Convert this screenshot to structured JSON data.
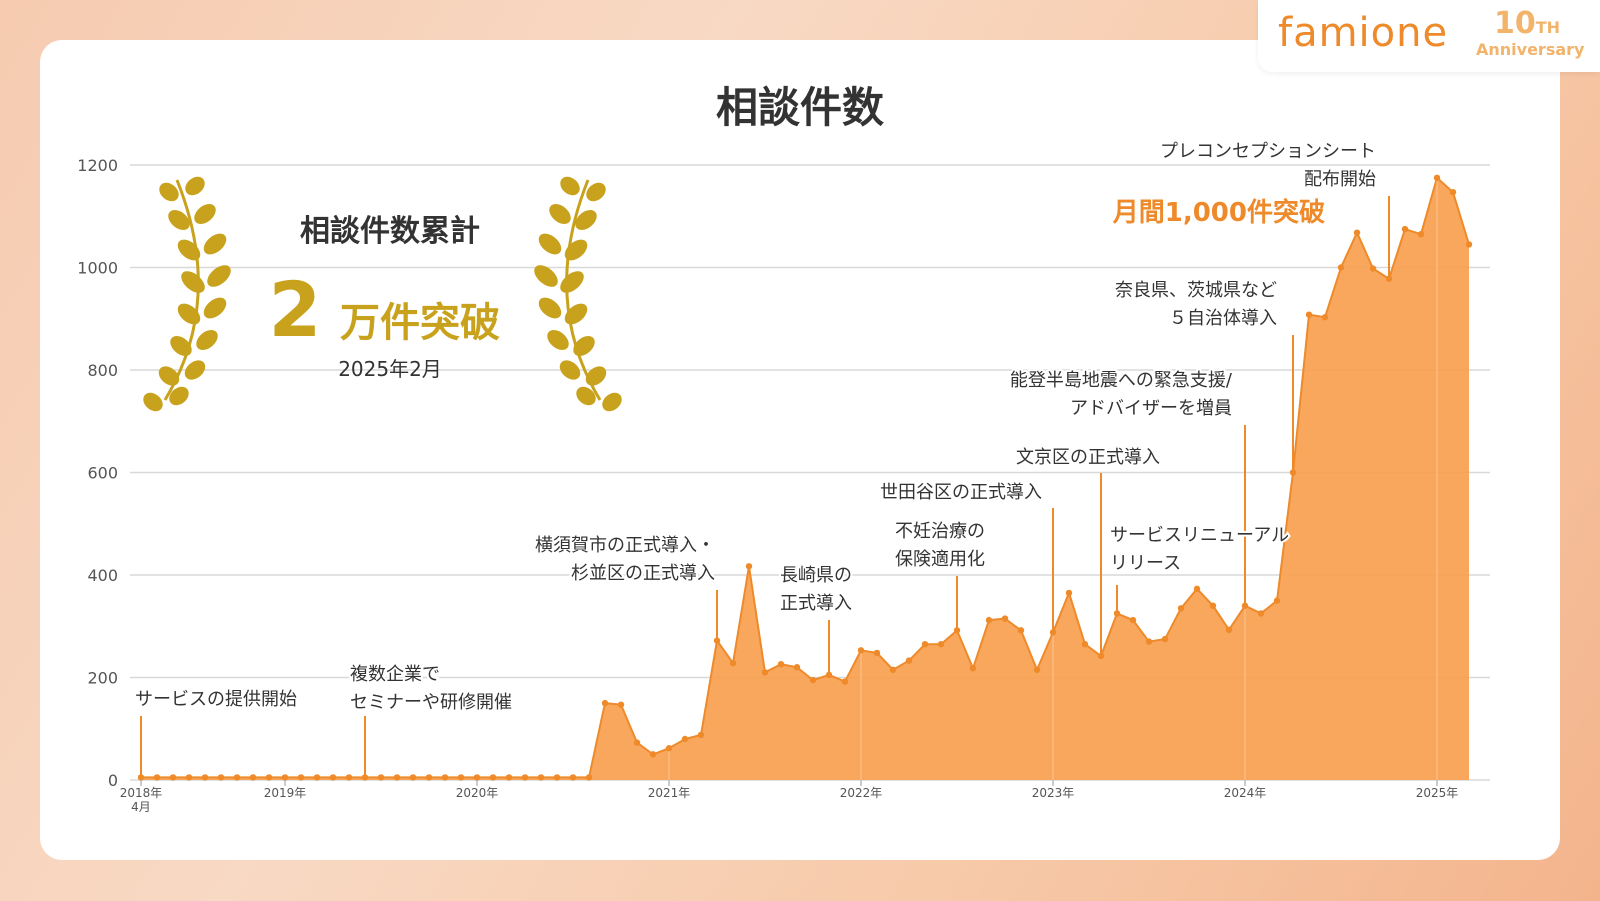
{
  "brand": {
    "logo": "famione",
    "anniversary_number": "10",
    "anniversary_suffix": "TH",
    "anniversary_word": "Anniversary"
  },
  "colors": {
    "fill": "#f8a04f",
    "line": "#ee8a2a",
    "gold": "#c8a21c",
    "text": "#333333",
    "grid": "#d9d9d9"
  },
  "summary": {
    "heading": "相談件数累計",
    "big_number": "2",
    "big_suffix": "万件突破",
    "date": "2025年2月"
  },
  "chart_data": {
    "type": "area",
    "title": "相談件数",
    "ylim": [
      0,
      1200
    ],
    "yticks": [
      0,
      200,
      400,
      600,
      800,
      1000,
      1200
    ],
    "grid": true,
    "x_start": "2018年4月",
    "x_tick_labels": [
      "2018年\n4月",
      "2019年",
      "2020年",
      "2021年",
      "2022年",
      "2023年",
      "2024年",
      "2025年"
    ],
    "x_tick_months": [
      "2018-04",
      "2019-01",
      "2020-01",
      "2021-01",
      "2022-01",
      "2023-01",
      "2024-01",
      "2025-01"
    ],
    "months": [
      "2018-04",
      "2018-05",
      "2018-06",
      "2018-07",
      "2018-08",
      "2018-09",
      "2018-10",
      "2018-11",
      "2018-12",
      "2019-01",
      "2019-02",
      "2019-03",
      "2019-04",
      "2019-05",
      "2019-06",
      "2019-07",
      "2019-08",
      "2019-09",
      "2019-10",
      "2019-11",
      "2019-12",
      "2020-01",
      "2020-02",
      "2020-03",
      "2020-04",
      "2020-05",
      "2020-06",
      "2020-07",
      "2020-08",
      "2020-09",
      "2020-10",
      "2020-11",
      "2020-12",
      "2021-01",
      "2021-02",
      "2021-03",
      "2021-04",
      "2021-05",
      "2021-06",
      "2021-07",
      "2021-08",
      "2021-09",
      "2021-10",
      "2021-11",
      "2021-12",
      "2022-01",
      "2022-02",
      "2022-03",
      "2022-04",
      "2022-05",
      "2022-06",
      "2022-07",
      "2022-08",
      "2022-09",
      "2022-10",
      "2022-11",
      "2022-12",
      "2023-01",
      "2023-02",
      "2023-03",
      "2023-04",
      "2023-05",
      "2023-06",
      "2023-07",
      "2023-08",
      "2023-09",
      "2023-10",
      "2023-11",
      "2023-12",
      "2024-01",
      "2024-02",
      "2024-03",
      "2024-04",
      "2024-05",
      "2024-06",
      "2024-07",
      "2024-08",
      "2024-09",
      "2024-10",
      "2024-11",
      "2024-12",
      "2025-01",
      "2025-02",
      "2025-03"
    ],
    "values": [
      5,
      5,
      5,
      5,
      5,
      5,
      5,
      5,
      5,
      5,
      5,
      5,
      5,
      5,
      5,
      5,
      5,
      5,
      5,
      5,
      5,
      5,
      5,
      5,
      5,
      5,
      5,
      5,
      5,
      150,
      147,
      73,
      50,
      62,
      80,
      88,
      272,
      228,
      417,
      210,
      226,
      220,
      195,
      205,
      192,
      253,
      248,
      215,
      233,
      265,
      265,
      292,
      218,
      312,
      315,
      292,
      215,
      288,
      365,
      265,
      242,
      325,
      312,
      270,
      275,
      335,
      373,
      340,
      293,
      340,
      325,
      350,
      600,
      908,
      903,
      1000,
      1068,
      998,
      978,
      1075,
      1065,
      1175,
      1147,
      1045
    ],
    "annotations": [
      {
        "month": "2018-04",
        "lines": [
          "サービスの提供開始"
        ],
        "highlight": false
      },
      {
        "month": "2019-06",
        "lines": [
          "複数企業で",
          "セミナーや研修開催"
        ],
        "highlight": false
      },
      {
        "month": "2021-04",
        "lines": [
          "横須賀市の正式導入・",
          "杉並区の正式導入"
        ],
        "highlight": false
      },
      {
        "month": "2021-11",
        "lines": [
          "長崎県の",
          "正式導入"
        ],
        "highlight": false
      },
      {
        "month": "2022-07",
        "lines": [
          "不妊治療の",
          "保険適用化"
        ],
        "highlight": false
      },
      {
        "month": "2023-01",
        "lines": [
          "世田谷区の正式導入"
        ],
        "highlight": false
      },
      {
        "month": "2023-04",
        "lines": [
          "文京区の正式導入"
        ],
        "highlight": false
      },
      {
        "month": "2023-05",
        "lines": [
          "サービスリニューアル",
          "リリース"
        ],
        "highlight": false
      },
      {
        "month": "2024-01",
        "lines": [
          "能登半島地震への緊急支援/",
          "アドバイザーを増員"
        ],
        "highlight": false
      },
      {
        "month": "2024-04",
        "lines": [
          "奈良県、茨城県など",
          "５自治体導入"
        ],
        "highlight": false
      },
      {
        "month": "2024-10",
        "lines": [
          "プレコンセプションシート",
          "配布開始"
        ],
        "highlight": false
      },
      {
        "month": "2024-07",
        "lines": [
          "月間1,000件突破"
        ],
        "highlight": true
      }
    ]
  }
}
